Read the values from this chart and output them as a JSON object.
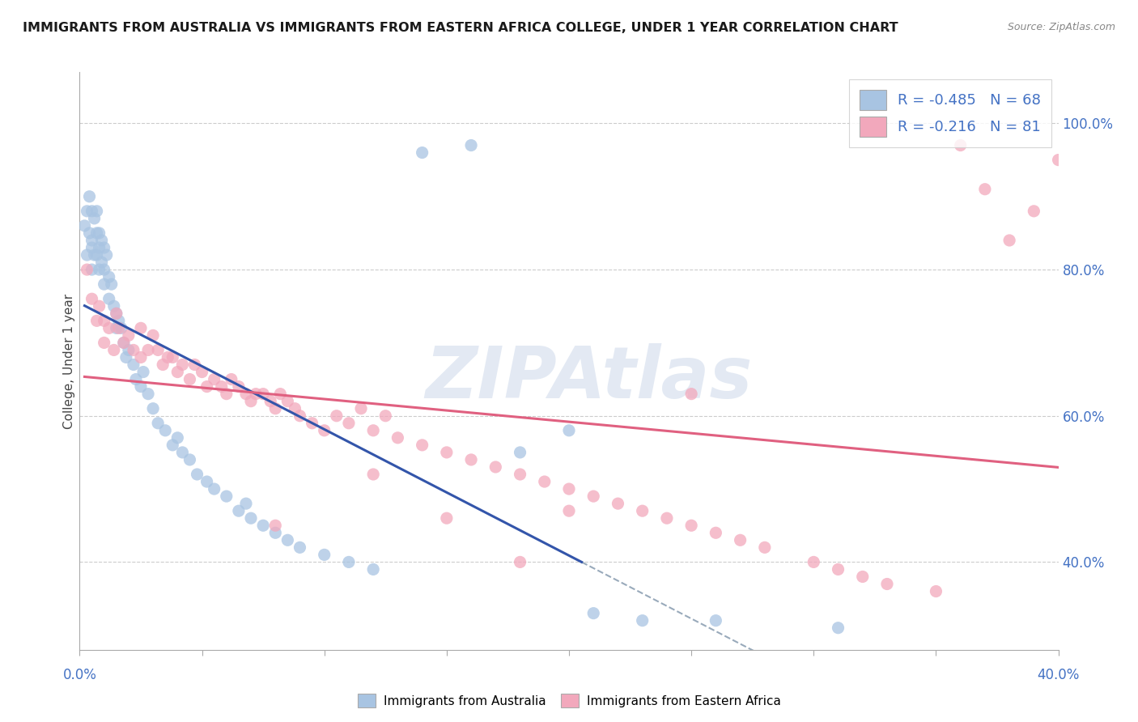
{
  "title": "IMMIGRANTS FROM AUSTRALIA VS IMMIGRANTS FROM EASTERN AFRICA COLLEGE, UNDER 1 YEAR CORRELATION CHART",
  "source": "Source: ZipAtlas.com",
  "ylabel": "College, Under 1 year",
  "blue_R": -0.485,
  "blue_N": 68,
  "pink_R": -0.216,
  "pink_N": 81,
  "blue_color": "#a8c4e2",
  "pink_color": "#f2a8bc",
  "blue_line_color": "#3355aa",
  "pink_line_color": "#e06080",
  "dashed_line_color": "#99aabb",
  "legend_label_blue": "Immigrants from Australia",
  "legend_label_pink": "Immigrants from Eastern Africa",
  "watermark_text": "ZIPAtlas",
  "xlim": [
    0.0,
    0.4
  ],
  "ylim": [
    0.28,
    1.07
  ],
  "yticks": [
    0.4,
    0.6,
    0.8,
    1.0
  ],
  "xticks": [
    0.0,
    0.05,
    0.1,
    0.15,
    0.2,
    0.25,
    0.3,
    0.35,
    0.4
  ],
  "right_yticklabels": [
    "40.0%",
    "60.0%",
    "80.0%",
    "100.0%"
  ],
  "blue_scatter_x": [
    0.002,
    0.003,
    0.003,
    0.004,
    0.004,
    0.005,
    0.005,
    0.005,
    0.005,
    0.006,
    0.006,
    0.007,
    0.007,
    0.007,
    0.008,
    0.008,
    0.008,
    0.009,
    0.009,
    0.01,
    0.01,
    0.01,
    0.011,
    0.012,
    0.012,
    0.013,
    0.014,
    0.015,
    0.015,
    0.016,
    0.017,
    0.018,
    0.019,
    0.02,
    0.022,
    0.023,
    0.025,
    0.026,
    0.028,
    0.03,
    0.032,
    0.035,
    0.038,
    0.04,
    0.042,
    0.045,
    0.048,
    0.052,
    0.055,
    0.06,
    0.065,
    0.068,
    0.07,
    0.075,
    0.08,
    0.085,
    0.09,
    0.1,
    0.11,
    0.12,
    0.14,
    0.16,
    0.18,
    0.2,
    0.21,
    0.23,
    0.26,
    0.31
  ],
  "blue_scatter_y": [
    0.86,
    0.88,
    0.82,
    0.9,
    0.85,
    0.88,
    0.84,
    0.83,
    0.8,
    0.87,
    0.82,
    0.88,
    0.85,
    0.82,
    0.85,
    0.83,
    0.8,
    0.84,
    0.81,
    0.83,
    0.8,
    0.78,
    0.82,
    0.79,
    0.76,
    0.78,
    0.75,
    0.74,
    0.72,
    0.73,
    0.72,
    0.7,
    0.68,
    0.69,
    0.67,
    0.65,
    0.64,
    0.66,
    0.63,
    0.61,
    0.59,
    0.58,
    0.56,
    0.57,
    0.55,
    0.54,
    0.52,
    0.51,
    0.5,
    0.49,
    0.47,
    0.48,
    0.46,
    0.45,
    0.44,
    0.43,
    0.42,
    0.41,
    0.4,
    0.39,
    0.96,
    0.97,
    0.55,
    0.58,
    0.33,
    0.32,
    0.32,
    0.31
  ],
  "pink_scatter_x": [
    0.003,
    0.005,
    0.007,
    0.008,
    0.01,
    0.01,
    0.012,
    0.014,
    0.015,
    0.016,
    0.018,
    0.02,
    0.022,
    0.025,
    0.025,
    0.028,
    0.03,
    0.032,
    0.034,
    0.036,
    0.038,
    0.04,
    0.042,
    0.045,
    0.047,
    0.05,
    0.052,
    0.055,
    0.058,
    0.06,
    0.062,
    0.065,
    0.068,
    0.07,
    0.072,
    0.075,
    0.078,
    0.08,
    0.082,
    0.085,
    0.088,
    0.09,
    0.095,
    0.1,
    0.105,
    0.11,
    0.115,
    0.12,
    0.125,
    0.13,
    0.14,
    0.15,
    0.16,
    0.17,
    0.18,
    0.19,
    0.2,
    0.21,
    0.22,
    0.23,
    0.24,
    0.25,
    0.26,
    0.27,
    0.28,
    0.3,
    0.31,
    0.32,
    0.33,
    0.35,
    0.36,
    0.37,
    0.38,
    0.39,
    0.4,
    0.2,
    0.25,
    0.18,
    0.15,
    0.12,
    0.08
  ],
  "pink_scatter_y": [
    0.8,
    0.76,
    0.73,
    0.75,
    0.73,
    0.7,
    0.72,
    0.69,
    0.74,
    0.72,
    0.7,
    0.71,
    0.69,
    0.72,
    0.68,
    0.69,
    0.71,
    0.69,
    0.67,
    0.68,
    0.68,
    0.66,
    0.67,
    0.65,
    0.67,
    0.66,
    0.64,
    0.65,
    0.64,
    0.63,
    0.65,
    0.64,
    0.63,
    0.62,
    0.63,
    0.63,
    0.62,
    0.61,
    0.63,
    0.62,
    0.61,
    0.6,
    0.59,
    0.58,
    0.6,
    0.59,
    0.61,
    0.58,
    0.6,
    0.57,
    0.56,
    0.55,
    0.54,
    0.53,
    0.52,
    0.51,
    0.5,
    0.49,
    0.48,
    0.47,
    0.46,
    0.45,
    0.44,
    0.43,
    0.42,
    0.4,
    0.39,
    0.38,
    0.37,
    0.36,
    0.97,
    0.91,
    0.84,
    0.88,
    0.95,
    0.47,
    0.63,
    0.4,
    0.46,
    0.52,
    0.45
  ]
}
